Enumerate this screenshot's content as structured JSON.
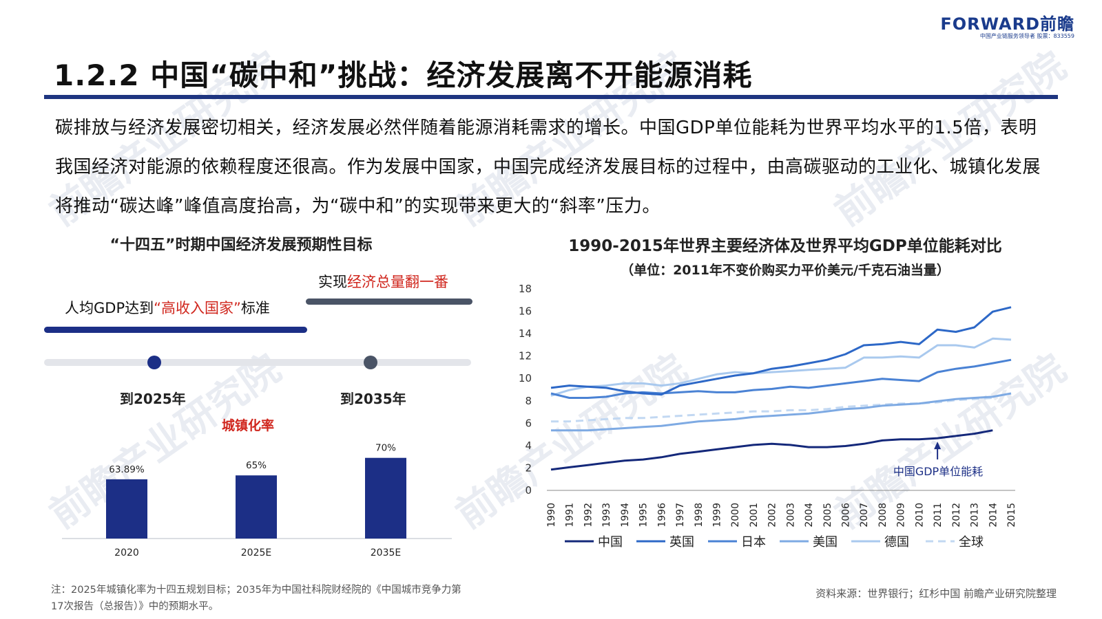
{
  "brand": {
    "name": "FORWARD前瞻",
    "tagline": "中国产业链服务领导者  股票：833559"
  },
  "watermark": "前瞻产业研究院",
  "title": "1.2.2 中国“碳中和”挑战：经济发展离不开能源消耗",
  "intro": "碳排放与经济发展密切相关，经济发展必然伴随着能源消耗需求的增长。中国GDP单位能耗为世界平均水平的1.5倍，表明我国经济对能源的依赖程度还很高。作为发展中国家，中国完成经济发展目标的过程中，由高碳驱动的工业化、城镇化发展将推动“碳达峰”峰值高度抬高，为“碳中和”的实现带来更大的“斜率”压力。",
  "left_panel": {
    "title": "“十四五”时期中国经济发展预期性目标",
    "goal_1": {
      "prefix": "人均GDP达到",
      "highlight": "“高收入国家”",
      "suffix": "标准"
    },
    "goal_2": {
      "prefix": "实现",
      "highlight": "经济总量翻一番"
    },
    "milestone_1": "到2025年",
    "milestone_2": "到2035年"
  },
  "right_panel": {
    "title": "1990-2015年世界主要经济体及世界平均GDP单位能耗对比",
    "subtitle": "（单位：2011年不变价购买力平价美元/千克石油当量）",
    "annotation": "中国GDP单位能耗"
  },
  "colors": {
    "navy": "#1c2f86",
    "china": "#14287a",
    "uk": "#2d68c7",
    "japan": "#4a82d4",
    "usa": "#7eaae3",
    "germany": "#a9c9ee",
    "world": "#c2d8f2",
    "red": "#d0261d"
  },
  "chart_data": [
    {
      "type": "bar",
      "title": "城镇化率",
      "categories": [
        "2020",
        "2025E",
        "2035E"
      ],
      "values": [
        63.89,
        65,
        70
      ],
      "value_labels": [
        "63.89%",
        "65%",
        "70%"
      ]
    },
    {
      "type": "line",
      "title": "",
      "x": [
        "1990",
        "1991",
        "1992",
        "1993",
        "1994",
        "1995",
        "1996",
        "1997",
        "1998",
        "1999",
        "2000",
        "2001",
        "2002",
        "2003",
        "2004",
        "2005",
        "2006",
        "2007",
        "2008",
        "2009",
        "2010",
        "2011",
        "2012",
        "2013",
        "2014",
        "2015"
      ],
      "ylim": [
        0,
        18
      ],
      "yticks": [
        0,
        2,
        4,
        6,
        8,
        10,
        12,
        14,
        16,
        18
      ],
      "legend_position": "bottom",
      "series": [
        {
          "name": "中国",
          "color_key": "china",
          "dashed": false,
          "values": [
            1.8,
            2.0,
            2.2,
            2.4,
            2.6,
            2.7,
            2.9,
            3.2,
            3.4,
            3.6,
            3.8,
            4.0,
            4.1,
            4.0,
            3.8,
            3.8,
            3.9,
            4.1,
            4.4,
            4.5,
            4.5,
            4.6,
            4.8,
            5.0,
            5.3,
            null
          ]
        },
        {
          "name": "英国",
          "color_key": "uk",
          "dashed": false,
          "values": [
            9.1,
            9.3,
            9.2,
            9.1,
            8.8,
            8.6,
            8.5,
            9.3,
            9.6,
            9.9,
            10.2,
            10.4,
            10.8,
            11.0,
            11.3,
            11.6,
            12.1,
            12.9,
            13.0,
            13.2,
            13.0,
            14.3,
            14.1,
            14.5,
            15.9,
            16.3
          ]
        },
        {
          "name": "日本",
          "color_key": "japan",
          "dashed": false,
          "values": [
            8.6,
            8.2,
            8.2,
            8.3,
            8.6,
            8.7,
            8.6,
            8.7,
            8.8,
            8.7,
            8.7,
            8.9,
            9.0,
            9.2,
            9.1,
            9.3,
            9.5,
            9.7,
            9.9,
            9.8,
            9.7,
            10.5,
            10.8,
            11.0,
            11.3,
            11.6
          ]
        },
        {
          "name": "美国",
          "color_key": "usa",
          "dashed": false,
          "values": [
            5.3,
            5.3,
            5.3,
            5.4,
            5.5,
            5.6,
            5.7,
            5.9,
            6.1,
            6.2,
            6.3,
            6.5,
            6.6,
            6.7,
            6.8,
            7.0,
            7.2,
            7.3,
            7.5,
            7.6,
            7.7,
            7.9,
            8.1,
            8.2,
            8.3,
            8.6
          ]
        },
        {
          "name": "德国",
          "color_key": "germany",
          "dashed": false,
          "values": [
            8.4,
            8.9,
            9.2,
            9.3,
            9.5,
            9.5,
            9.3,
            9.5,
            9.9,
            10.3,
            10.5,
            10.4,
            10.5,
            10.6,
            10.7,
            10.8,
            10.9,
            11.8,
            11.8,
            11.9,
            11.8,
            12.9,
            12.9,
            12.7,
            13.5,
            13.4
          ]
        },
        {
          "name": "全球",
          "color_key": "world",
          "dashed": true,
          "values": [
            6.1,
            6.1,
            6.2,
            6.3,
            6.4,
            6.4,
            6.5,
            6.6,
            6.7,
            6.8,
            6.9,
            7.0,
            7.0,
            7.1,
            7.1,
            7.2,
            7.4,
            7.5,
            7.6,
            7.7,
            7.7,
            7.8,
            8.0,
            8.1,
            8.2,
            null
          ]
        }
      ]
    }
  ],
  "footnote": "注：2025年城镇化率为十四五规划目标；2035年为中国社科院财经院的《中国城市竞争力第17次报告（总报告）》中的预期水平。",
  "source": "资料来源：世界银行；红杉中国 前瞻产业研究院整理"
}
